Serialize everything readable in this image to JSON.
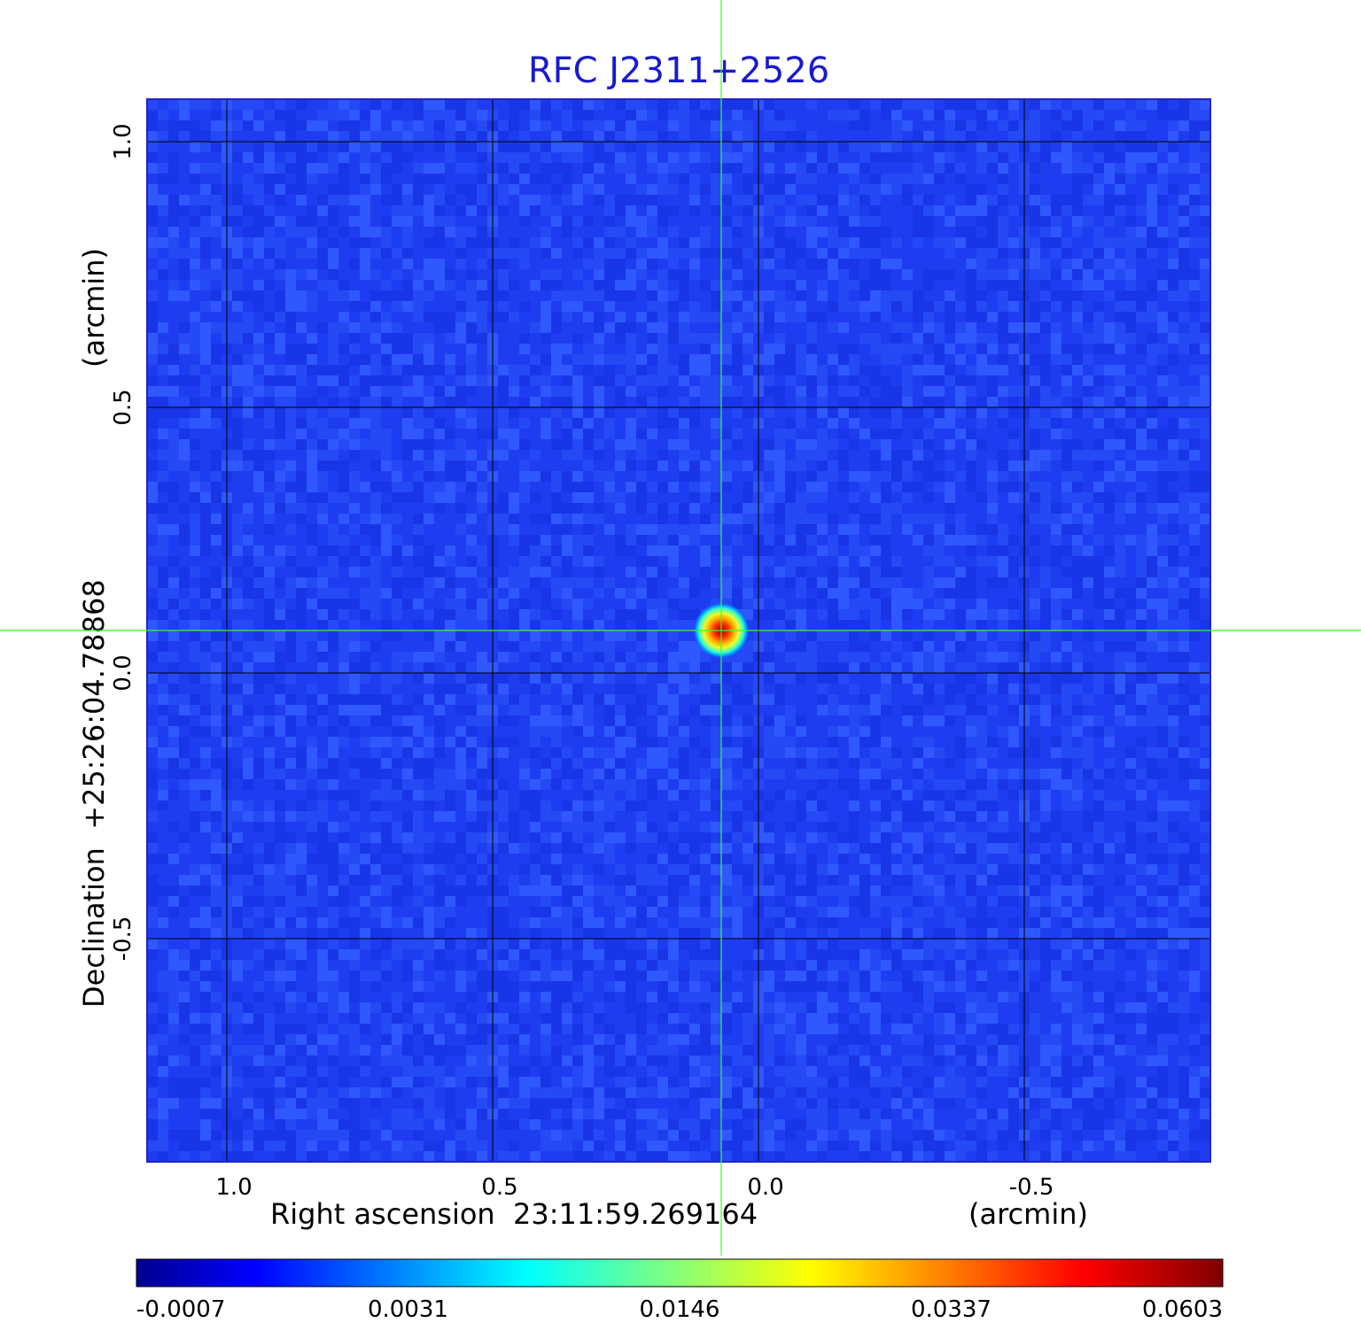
{
  "chart_data": {
    "type": "heatmap",
    "title": "RFC J2311+2526",
    "xlabel": "Right ascension  23:11:59.269164",
    "xlabel_unit": "(arcmin)",
    "ylabel": "Declination  +25:26:04.78868",
    "ylabel_unit": "(arcmin)",
    "xlim": [
      1.15,
      -0.85
    ],
    "ylim": [
      -0.92,
      1.08
    ],
    "x_ticks": [
      {
        "value": 1.0,
        "label": "1.0"
      },
      {
        "value": 0.5,
        "label": "0.5"
      },
      {
        "value": 0.0,
        "label": "0.0"
      },
      {
        "value": -0.5,
        "label": "-0.5"
      }
    ],
    "y_ticks": [
      {
        "value": 1.0,
        "label": "1.0"
      },
      {
        "value": 0.5,
        "label": "0.5"
      },
      {
        "value": 0.0,
        "label": "0.0"
      },
      {
        "value": -0.5,
        "label": "-0.5"
      }
    ],
    "grid": true,
    "source": {
      "x": 0.07,
      "y": 0.08,
      "peak": 0.0603
    },
    "crosshair": {
      "x": 0.07,
      "y": 0.08
    },
    "colormap": "jet",
    "colorbar": {
      "min": -0.0007,
      "max": 0.0603,
      "tick_labels": [
        "-0.0007",
        "0.0031",
        "0.0146",
        "0.0337",
        "0.0603"
      ]
    }
  },
  "colors": {
    "title": "#1a1acc",
    "grid": "#000000",
    "crosshair": "#33ff33",
    "frame": "#2222cc",
    "text": "#000000"
  }
}
